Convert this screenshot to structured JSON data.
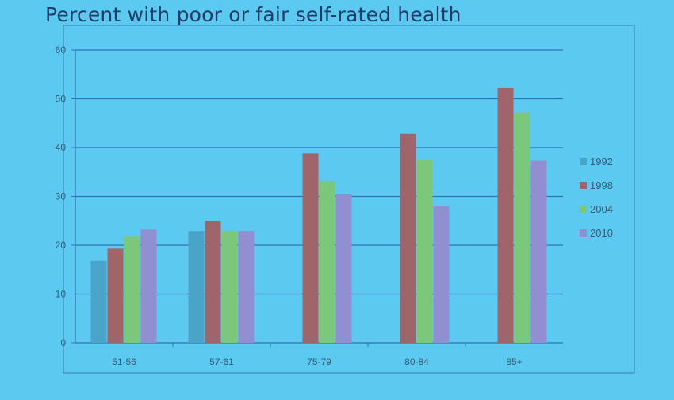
{
  "chart_data": {
    "type": "bar",
    "title": "Percent with poor or fair self-rated health",
    "xlabel": "",
    "ylabel": "",
    "categories": [
      "51-56",
      "57-61",
      "75-79",
      "80-84",
      "85+"
    ],
    "series": [
      {
        "name": "1992",
        "color": "#4aa3c9",
        "values": [
          16.8,
          22.9,
          null,
          null,
          null
        ]
      },
      {
        "name": "1998",
        "color": "#a0656a",
        "values": [
          19.3,
          25.0,
          38.8,
          42.8,
          52.2
        ]
      },
      {
        "name": "2004",
        "color": "#7cc87a",
        "values": [
          21.9,
          22.9,
          33.1,
          37.5,
          47.2
        ]
      },
      {
        "name": "2010",
        "color": "#8f8fd2",
        "values": [
          23.2,
          22.9,
          30.5,
          28.0,
          37.3
        ]
      }
    ],
    "ylim": [
      0,
      60
    ],
    "yticks": [
      0,
      10,
      20,
      30,
      40,
      50,
      60
    ],
    "grid": true,
    "legend": "right"
  }
}
